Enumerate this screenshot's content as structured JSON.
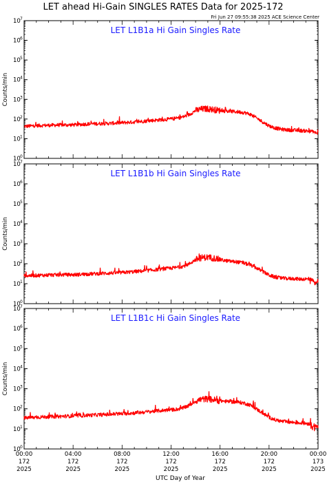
{
  "page": {
    "title": "LET ahead Hi-Gain SINGLES RATES Data for 2025-172",
    "timestamp": "Fri Jun 27 09:55:38 2025 ACE Science Center"
  },
  "colors": {
    "trace": "#ff0000",
    "panel_title": "#1a1aff",
    "axes": "#000000"
  },
  "chart_data": [
    {
      "type": "line",
      "title": "LET L1B1a Hi Gain Singles Rate",
      "ylabel": "Counts/min",
      "xlabel": "UTC Day of Year",
      "yscale": "log",
      "ylim": [
        1,
        10000000
      ],
      "xlim": [
        0,
        24
      ],
      "grid": false,
      "series": [
        {
          "x": [
            0,
            1,
            2,
            3,
            4,
            5,
            6,
            7,
            8,
            9,
            10,
            11,
            12,
            12.5,
            13,
            13.5,
            14,
            14.5,
            15,
            15.5,
            16,
            16.5,
            17,
            17.5,
            18,
            18.5,
            19,
            19.5,
            20,
            20.5,
            21,
            21.5,
            22,
            22.5,
            23,
            23.5,
            24
          ],
          "y": [
            42,
            46,
            48,
            50,
            50,
            55,
            58,
            60,
            65,
            70,
            80,
            90,
            100,
            110,
            130,
            170,
            270,
            320,
            330,
            300,
            270,
            250,
            240,
            230,
            210,
            170,
            110,
            70,
            45,
            35,
            30,
            28,
            27,
            26,
            25,
            23,
            18
          ]
        }
      ]
    },
    {
      "type": "line",
      "title": "LET L1B1b Hi Gain Singles Rate",
      "ylabel": "Counts/min",
      "xlabel": "UTC Day of Year",
      "yscale": "log",
      "ylim": [
        1,
        10000000
      ],
      "xlim": [
        0,
        24
      ],
      "grid": false,
      "series": [
        {
          "x": [
            0,
            1,
            2,
            3,
            4,
            5,
            6,
            7,
            8,
            9,
            10,
            11,
            12,
            12.5,
            13,
            13.5,
            14,
            14.5,
            15,
            15.5,
            16,
            16.5,
            17,
            17.5,
            18,
            18.5,
            19,
            19.5,
            20,
            20.5,
            21,
            21.5,
            22,
            22.5,
            23,
            23.5,
            24
          ],
          "y": [
            25,
            26,
            27,
            28,
            28,
            30,
            32,
            34,
            36,
            40,
            45,
            52,
            60,
            65,
            75,
            100,
            160,
            200,
            210,
            190,
            160,
            140,
            130,
            120,
            105,
            85,
            60,
            40,
            27,
            21,
            19,
            18,
            18,
            17,
            17,
            16,
            12
          ]
        }
      ]
    },
    {
      "type": "line",
      "title": "LET L1B1c Hi Gain Singles Rate",
      "ylabel": "Counts/min",
      "xlabel": "UTC Day of Year",
      "yscale": "log",
      "ylim": [
        1,
        10000000
      ],
      "xlim": [
        0,
        24
      ],
      "grid": false,
      "series": [
        {
          "x": [
            0,
            1,
            2,
            3,
            4,
            5,
            6,
            7,
            8,
            9,
            10,
            11,
            12,
            12.5,
            13,
            13.5,
            14,
            14.5,
            15,
            15.5,
            16,
            16.5,
            17,
            17.5,
            18,
            18.5,
            19,
            19.5,
            20,
            20.5,
            21,
            21.5,
            22,
            22.5,
            23,
            23.5,
            24
          ],
          "y": [
            35,
            38,
            40,
            42,
            44,
            47,
            50,
            53,
            57,
            62,
            70,
            80,
            90,
            95,
            110,
            150,
            240,
            300,
            310,
            280,
            250,
            235,
            225,
            215,
            190,
            150,
            95,
            60,
            38,
            28,
            24,
            22,
            21,
            20,
            19,
            17,
            12
          ]
        }
      ]
    }
  ],
  "x_axis": {
    "xlabel": "UTC Day of Year",
    "ticks": [
      {
        "t": 0,
        "time": "00:00",
        "doy": "172",
        "year": "2025"
      },
      {
        "t": 4,
        "time": "04:00",
        "doy": "172",
        "year": "2025"
      },
      {
        "t": 8,
        "time": "08:00",
        "doy": "172",
        "year": "2025"
      },
      {
        "t": 12,
        "time": "12:00",
        "doy": "172",
        "year": "2025"
      },
      {
        "t": 16,
        "time": "16:00",
        "doy": "172",
        "year": "2025"
      },
      {
        "t": 20,
        "time": "20:00",
        "doy": "172",
        "year": "2025"
      },
      {
        "t": 24,
        "time": "00:00",
        "doy": "173",
        "year": "2025"
      }
    ]
  },
  "y_axis": {
    "ticks": [
      {
        "v": 1,
        "base": "10",
        "exp": "0"
      },
      {
        "v": 10,
        "base": "10",
        "exp": "1"
      },
      {
        "v": 100,
        "base": "10",
        "exp": "2"
      },
      {
        "v": 1000,
        "base": "10",
        "exp": "3"
      },
      {
        "v": 10000,
        "base": "10",
        "exp": "4"
      },
      {
        "v": 100000,
        "base": "10",
        "exp": "5"
      },
      {
        "v": 1000000,
        "base": "10",
        "exp": "6"
      },
      {
        "v": 10000000,
        "base": "10",
        "exp": "7"
      }
    ]
  }
}
